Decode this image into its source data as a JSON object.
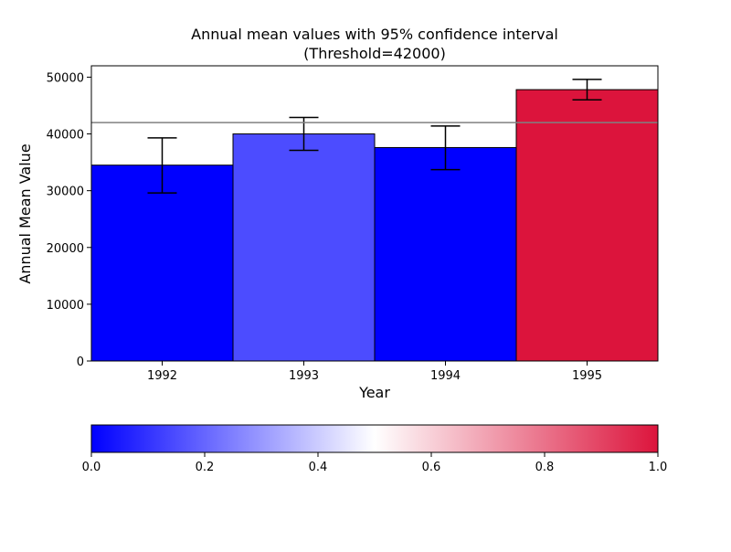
{
  "chart_data": {
    "type": "bar",
    "title": "Annual mean values with 95% confidence interval",
    "subtitle": "(Threshold=42000)",
    "xlabel": "Year",
    "ylabel": "Annual Mean Value",
    "categories": [
      "1992",
      "1993",
      "1994",
      "1995"
    ],
    "values": [
      34500,
      40000,
      37600,
      47800
    ],
    "ci_low": [
      29600,
      37100,
      33700,
      46000
    ],
    "ci_high": [
      39300,
      42900,
      41400,
      49600
    ],
    "bar_colors": [
      "#0000ff",
      "#4c4cff",
      "#0000ff",
      "#dc143c"
    ],
    "threshold": 42000,
    "ylim": [
      0,
      52000
    ],
    "yticks": [
      0,
      10000,
      20000,
      30000,
      40000,
      50000
    ],
    "ytick_labels": [
      "0",
      "10000",
      "20000",
      "30000",
      "40000",
      "50000"
    ],
    "grid": false,
    "colorbar": {
      "colormap": [
        "#0000ff",
        "#ffffff",
        "#dc143c"
      ],
      "range": [
        0,
        1
      ],
      "ticks": [
        0,
        0.2,
        0.4,
        0.6,
        0.8,
        1.0
      ],
      "tick_labels": [
        "0.0",
        "0.2",
        "0.4",
        "0.6",
        "0.8",
        "1.0"
      ],
      "orientation": "horizontal",
      "placement": "bottom"
    }
  }
}
